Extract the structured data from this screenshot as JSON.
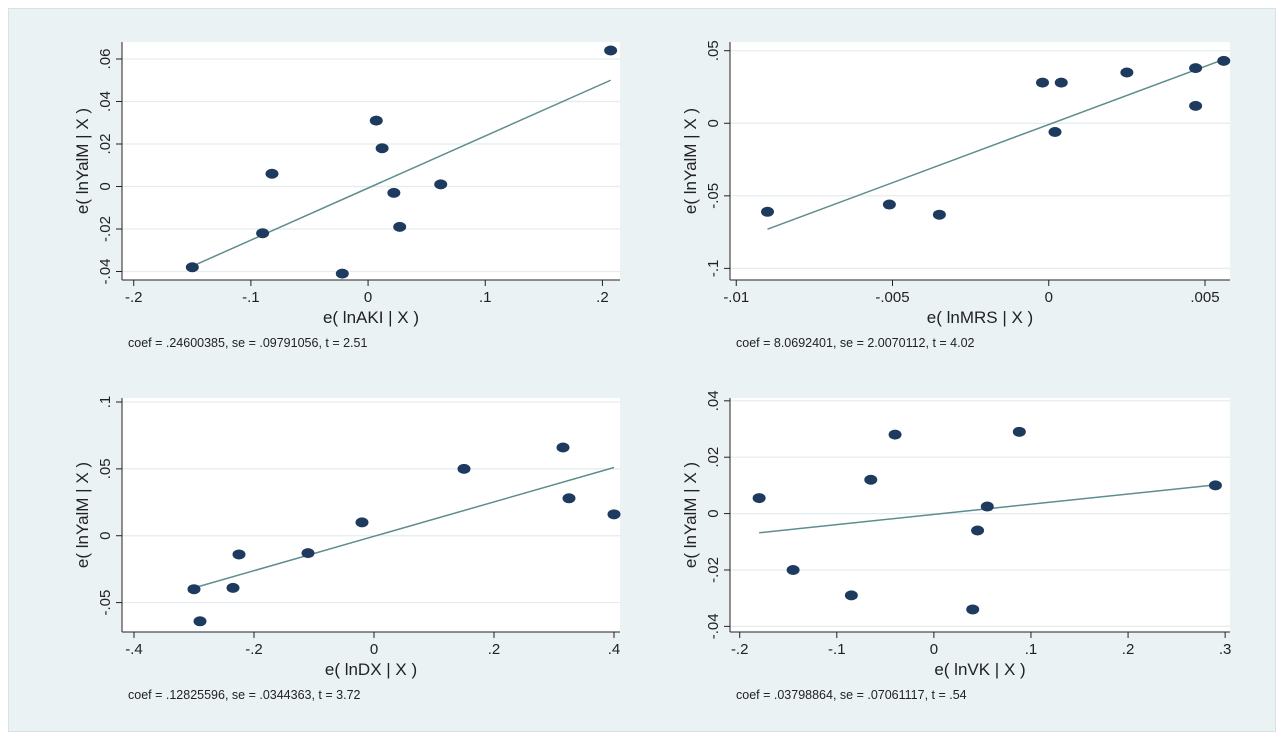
{
  "chart_data": [
    {
      "type": "scatter",
      "xlabel": "e( lnAKI | X )",
      "ylabel": "e( lnYalM | X )",
      "note": "coef = .24600385, se = .09791056, t = 2.51",
      "xlim": [
        -0.21,
        0.215
      ],
      "ylim": [
        -0.044,
        0.068
      ],
      "xticks": [
        -0.2,
        -0.1,
        0,
        0.1,
        0.2
      ],
      "xtick_labels": [
        "-.2",
        "-.1",
        "0",
        ".1",
        ".2"
      ],
      "yticks": [
        -0.04,
        -0.02,
        0,
        0.02,
        0.04,
        0.06
      ],
      "ytick_labels": [
        "-.04",
        "-.02",
        "0",
        ".02",
        ".04",
        ".06"
      ],
      "points": [
        {
          "x": -0.15,
          "y": -0.038
        },
        {
          "x": -0.09,
          "y": -0.022
        },
        {
          "x": -0.082,
          "y": 0.006
        },
        {
          "x": -0.022,
          "y": -0.041
        },
        {
          "x": 0.007,
          "y": 0.031
        },
        {
          "x": 0.012,
          "y": 0.018
        },
        {
          "x": 0.022,
          "y": -0.003
        },
        {
          "x": 0.027,
          "y": -0.019
        },
        {
          "x": 0.062,
          "y": 0.001
        },
        {
          "x": 0.207,
          "y": 0.064
        }
      ],
      "fit": {
        "x": [
          -0.15,
          0.207
        ],
        "y": [
          -0.0375,
          0.05
        ]
      },
      "grid": true
    },
    {
      "type": "scatter",
      "xlabel": "e( lnMRS | X )",
      "ylabel": "e( lnYalM | X )",
      "note": "coef = 8.0692401, se = 2.0070112, t = 4.02",
      "xlim": [
        -0.0102,
        0.0058
      ],
      "ylim": [
        -0.108,
        0.056
      ],
      "xticks": [
        -0.01,
        -0.005,
        0,
        0.005
      ],
      "xtick_labels": [
        "-.01",
        "-.005",
        "0",
        ".005"
      ],
      "yticks": [
        -0.1,
        -0.05,
        0,
        0.05
      ],
      "ytick_labels": [
        "-.1",
        "-.05",
        "0",
        ".05"
      ],
      "points": [
        {
          "x": -0.009,
          "y": -0.061
        },
        {
          "x": -0.0051,
          "y": -0.056
        },
        {
          "x": -0.0035,
          "y": -0.063
        },
        {
          "x": -0.0002,
          "y": 0.028
        },
        {
          "x": 0.0002,
          "y": -0.006
        },
        {
          "x": 0.0004,
          "y": 0.028
        },
        {
          "x": 0.0025,
          "y": 0.035
        },
        {
          "x": 0.0047,
          "y": 0.012
        },
        {
          "x": 0.0047,
          "y": 0.038
        },
        {
          "x": 0.0056,
          "y": 0.043
        }
      ],
      "fit": {
        "x": [
          -0.009,
          0.0056
        ],
        "y": [
          -0.073,
          0.044
        ]
      },
      "grid": true
    },
    {
      "type": "scatter",
      "xlabel": "e( lnDX | X )",
      "ylabel": "e( lnYalM | X )",
      "note": "coef = .12825596, se = .0344363, t = 3.72",
      "xlim": [
        -0.42,
        0.41
      ],
      "ylim": [
        -0.072,
        0.103
      ],
      "xticks": [
        -0.4,
        -0.2,
        0,
        0.2,
        0.4
      ],
      "xtick_labels": [
        "-.4",
        "-.2",
        "0",
        ".2",
        ".4"
      ],
      "yticks": [
        -0.05,
        0,
        0.05,
        0.1
      ],
      "ytick_labels": [
        "-.05",
        "0",
        ".05",
        ".1"
      ],
      "points": [
        {
          "x": -0.3,
          "y": -0.04
        },
        {
          "x": -0.29,
          "y": -0.064
        },
        {
          "x": -0.235,
          "y": -0.039
        },
        {
          "x": -0.225,
          "y": -0.014
        },
        {
          "x": -0.11,
          "y": -0.013
        },
        {
          "x": -0.02,
          "y": 0.01
        },
        {
          "x": 0.15,
          "y": 0.05
        },
        {
          "x": 0.315,
          "y": 0.066
        },
        {
          "x": 0.325,
          "y": 0.028
        },
        {
          "x": 0.4,
          "y": 0.016
        }
      ],
      "fit": {
        "x": [
          -0.3,
          0.4
        ],
        "y": [
          -0.039,
          0.051
        ]
      },
      "grid": true
    },
    {
      "type": "scatter",
      "xlabel": "e( lnVK | X )",
      "ylabel": "e( lnYalM | X )",
      "note": "coef = .03798864, se = .07061117, t = .54",
      "xlim": [
        -0.21,
        0.305
      ],
      "ylim": [
        -0.042,
        0.041
      ],
      "xticks": [
        -0.2,
        -0.1,
        0,
        0.1,
        0.2,
        0.3
      ],
      "xtick_labels": [
        "-.2",
        "-.1",
        "0",
        ".1",
        ".2",
        ".3"
      ],
      "yticks": [
        -0.04,
        -0.02,
        0,
        0.02,
        0.04
      ],
      "ytick_labels": [
        "-.04",
        "-.02",
        "0",
        ".02",
        ".04"
      ],
      "points": [
        {
          "x": -0.18,
          "y": 0.0055
        },
        {
          "x": -0.145,
          "y": -0.02
        },
        {
          "x": -0.085,
          "y": -0.029
        },
        {
          "x": -0.065,
          "y": 0.012
        },
        {
          "x": -0.04,
          "y": 0.028
        },
        {
          "x": 0.04,
          "y": -0.034
        },
        {
          "x": 0.045,
          "y": -0.006
        },
        {
          "x": 0.055,
          "y": 0.0025
        },
        {
          "x": 0.088,
          "y": 0.029
        },
        {
          "x": 0.29,
          "y": 0.01
        }
      ],
      "fit": {
        "x": [
          -0.18,
          0.29
        ],
        "y": [
          -0.0068,
          0.0102
        ]
      },
      "grid": true
    }
  ],
  "colors": {
    "background": "#eaf2f3",
    "plot_area": "#ffffff",
    "grid": "#e3ecee",
    "marker": "#1f3a5f",
    "fit_line": "#5f8c8c",
    "axis": "#222222"
  }
}
